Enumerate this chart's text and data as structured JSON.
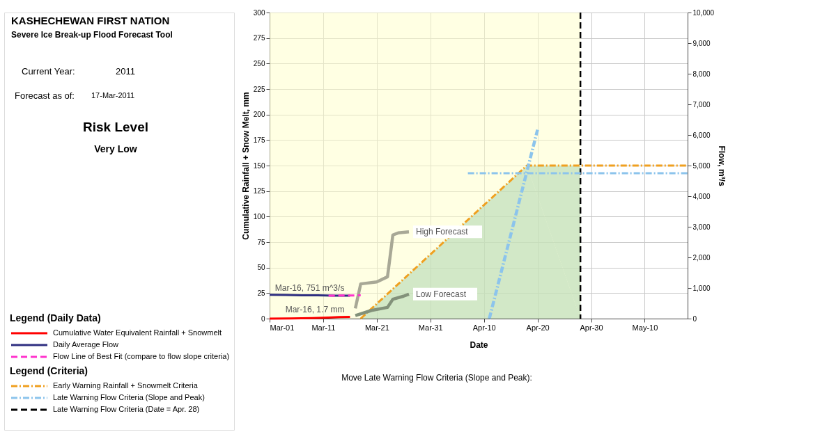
{
  "chart_data": {
    "type": "line",
    "title": "KASHECHEWAN FIRST NATION",
    "subtitle": "Severe Ice Break-up Flood Forecast Tool",
    "xlabel": "Date",
    "ylabel": "Cumulative Rainfall + Snow Melt, mm",
    "y2label": "Flow, m³/s",
    "xlim": [
      "2011-03-01",
      "2011-05-18"
    ],
    "xticks": [
      {
        "value": "2011-03-01",
        "label": "Mar-01"
      },
      {
        "value": "2011-03-11",
        "label": "Mar-11"
      },
      {
        "value": "2011-03-21",
        "label": "Mar-21"
      },
      {
        "value": "2011-03-31",
        "label": "Mar-31"
      },
      {
        "value": "2011-04-10",
        "label": "Apr-10"
      },
      {
        "value": "2011-04-20",
        "label": "Apr-20"
      },
      {
        "value": "2011-04-30",
        "label": "Apr-30"
      },
      {
        "value": "2011-05-10",
        "label": "May-10"
      }
    ],
    "ylim": [
      0,
      300
    ],
    "yticks": [
      0,
      25,
      50,
      75,
      100,
      125,
      150,
      175,
      200,
      225,
      250,
      275,
      300
    ],
    "y2lim": [
      0,
      10000
    ],
    "y2ticks": [
      0,
      {
        "value": 1000,
        "label": "1,000"
      },
      {
        "value": 2000,
        "label": "2,000"
      },
      {
        "value": 3000,
        "label": "3,000"
      },
      {
        "value": 4000,
        "label": "4,000"
      },
      {
        "value": 5000,
        "label": "5,000"
      },
      {
        "value": 6000,
        "label": "6,000"
      },
      {
        "value": 7000,
        "label": "7,000"
      },
      {
        "value": 8000,
        "label": "8,000"
      },
      {
        "value": 9000,
        "label": "9,000"
      },
      {
        "value": 10000,
        "label": "10,000"
      }
    ],
    "grid": true,
    "legend": "left",
    "series": [
      {
        "type": "area",
        "color": "#b4d9b4",
        "x": [
          "2011-03-18",
          "2011-04-18",
          "2011-04-28"
        ],
        "values": [
          0,
          150,
          150
        ]
      },
      {
        "name": "Cumulative Water Equivalent Rainfall + Snowmelt",
        "color": "#ff0000",
        "x": [
          "2011-03-01",
          "2011-03-05",
          "2011-03-09",
          "2011-03-12",
          "2011-03-14",
          "2011-03-16"
        ],
        "values": [
          0,
          0.2,
          0.5,
          1.0,
          1.5,
          1.7
        ]
      },
      {
        "name": "Daily Average Flow",
        "color": "#2e2e80",
        "axis": "y2",
        "x": [
          "2011-03-01",
          "2011-03-04",
          "2011-03-07",
          "2011-03-10",
          "2011-03-13",
          "2011-03-16"
        ],
        "values": [
          780,
          770,
          760,
          760,
          750,
          750
        ]
      },
      {
        "name": "Flow Line of Best Fit (compare to flow slope criteria)",
        "color": "#ff33cc",
        "axis": "y2",
        "line_style": "dashed",
        "x": [
          "2011-03-12",
          "2011-03-18"
        ],
        "values": [
          750,
          760
        ]
      },
      {
        "name": "Early Warning Rainfall + Snowmelt Criteria",
        "color": "#f0a020",
        "line_style": "dotted",
        "x": [
          "2011-03-18",
          "2011-04-18",
          "2011-05-18"
        ],
        "values": [
          0,
          150,
          150
        ]
      },
      {
        "name": "Late Warning Flow Criteria  (Slope and Peak)",
        "color": "#8cc4ec",
        "axis": "y2",
        "line_style": "dotted",
        "x": [
          "2011-04-07",
          "2011-05-18"
        ],
        "values": [
          4750,
          4750
        ]
      },
      {
        "color": "#8cc4ec",
        "axis": "y2",
        "line_style": "dotted",
        "x": [
          "2011-04-11",
          "2011-04-20"
        ],
        "values": [
          0,
          6170
        ]
      },
      {
        "color": "#a8a896",
        "x": [
          "2011-03-17",
          "2011-03-18",
          "2011-03-21",
          "2011-03-23",
          "2011-03-24",
          "2011-03-25",
          "2011-03-27"
        ],
        "values": [
          10,
          34,
          36,
          41,
          82,
          84,
          85
        ]
      },
      {
        "color": "#82917a",
        "x": [
          "2011-03-17",
          "2011-03-20",
          "2011-03-23",
          "2011-03-24",
          "2011-03-26",
          "2011-03-27"
        ],
        "values": [
          3,
          8,
          11,
          19,
          22,
          24
        ]
      }
    ],
    "bands": [
      {
        "axis": "x",
        "from": "2011-03-01",
        "to": "2011-04-28",
        "color": "#ffffc8"
      }
    ],
    "ref_lines": [
      {
        "axis": "x",
        "value": "2011-04-28",
        "label": "Late Warning Flow Criteria (Date = Apr. 28)",
        "color": "#000000",
        "line_style": "dashed"
      }
    ],
    "annotations": [
      {
        "text": "Mar-16, 751  m^3/s",
        "x": "2011-03-16",
        "y": 22.5
      },
      {
        "text": "Mar-16, 1.7  mm",
        "x": "2011-03-16",
        "y": 1.7
      },
      {
        "text": "High Forecast",
        "x": "2011-03-27",
        "y": 85
      },
      {
        "text": "Low Forecast",
        "x": "2011-03-27",
        "y": 24
      },
      "Current Year:",
      "2011",
      "Forecast as of:",
      "17-Mar-2011",
      "Risk Level",
      "Very Low",
      "Legend (Daily Data)",
      "Legend (Criteria)",
      "Move Late Warning Flow Criteria  (Slope and Peak):"
    ]
  }
}
